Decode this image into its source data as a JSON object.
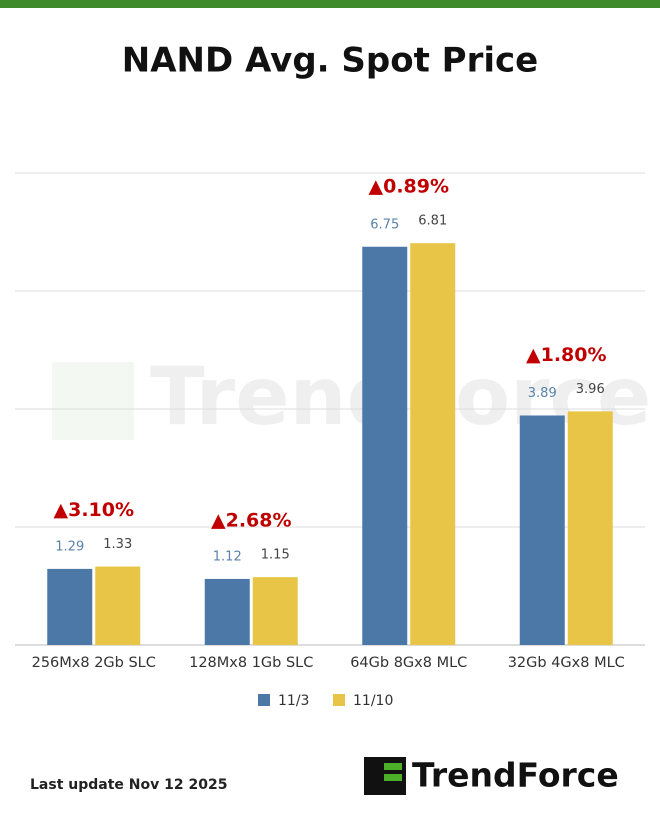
{
  "chart_data": {
    "type": "bar",
    "title": "NAND Avg. Spot Price",
    "categories": [
      "256Mx8 2Gb SLC",
      "128Mx8 1Gb SLC",
      "64Gb 8Gx8 MLC",
      "32Gb 4Gx8 MLC"
    ],
    "series": [
      {
        "name": "11/3",
        "color": "#4c78a8",
        "label_color": "#5a82ab",
        "values": [
          1.29,
          1.12,
          6.75,
          3.89
        ]
      },
      {
        "name": "11/10",
        "color": "#e8c547",
        "label_color": "#444444",
        "values": [
          1.33,
          1.15,
          6.81,
          3.96
        ]
      }
    ],
    "annotations": [
      "▲3.10%",
      "▲2.68%",
      "▲0.89%",
      "▲1.80%"
    ],
    "annotation_color": "#c00000",
    "ylim": [
      0,
      8
    ],
    "yticks": [
      0,
      2,
      4,
      6,
      8
    ],
    "grid": true,
    "legend": "bottom",
    "watermark": "TrendForce",
    "footer": "Last update Nov 12  2025",
    "logo": "TrendForce"
  }
}
